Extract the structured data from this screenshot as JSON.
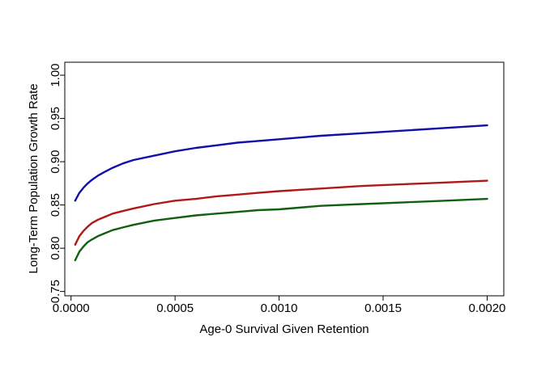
{
  "chart_data": {
    "type": "line",
    "title": "",
    "xlabel": "Age-0 Survival Given Retention",
    "ylabel": "Long-Term Population Growth Rate",
    "xlim": [
      -3e-05,
      0.00208
    ],
    "ylim": [
      0.745,
      1.015
    ],
    "xticks": [
      0.0,
      0.0005,
      0.001,
      0.0015,
      0.002
    ],
    "xtick_labels": [
      "0.0000",
      "0.0005",
      "0.0010",
      "0.0015",
      "0.0020"
    ],
    "yticks": [
      0.75,
      0.8,
      0.85,
      0.9,
      0.95,
      1.0
    ],
    "ytick_labels": [
      "0.75",
      "0.80",
      "0.85",
      "0.90",
      "0.95",
      "1.00"
    ],
    "grid": false,
    "legend": "none",
    "series": [
      {
        "color": "#1010a8",
        "x": [
          2e-05,
          4e-05,
          6e-05,
          8e-05,
          0.0001,
          0.00013,
          0.00016,
          0.0002,
          0.00025,
          0.0003,
          0.0004,
          0.0005,
          0.0006,
          0.0007,
          0.0008,
          0.0009,
          0.001,
          0.0012,
          0.0014,
          0.0016,
          0.0018,
          0.002
        ],
        "y": [
          0.855,
          0.864,
          0.87,
          0.875,
          0.879,
          0.884,
          0.888,
          0.893,
          0.898,
          0.902,
          0.907,
          0.912,
          0.916,
          0.919,
          0.922,
          0.924,
          0.926,
          0.93,
          0.933,
          0.936,
          0.939,
          0.942
        ]
      },
      {
        "color": "#b01818",
        "x": [
          2e-05,
          4e-05,
          6e-05,
          8e-05,
          0.0001,
          0.00013,
          0.00016,
          0.0002,
          0.00025,
          0.0003,
          0.0004,
          0.0005,
          0.0006,
          0.0007,
          0.0008,
          0.0009,
          0.001,
          0.0012,
          0.0014,
          0.0016,
          0.0018,
          0.002
        ],
        "y": [
          0.804,
          0.814,
          0.82,
          0.825,
          0.829,
          0.833,
          0.836,
          0.84,
          0.843,
          0.846,
          0.851,
          0.855,
          0.857,
          0.86,
          0.862,
          0.864,
          0.866,
          0.869,
          0.872,
          0.874,
          0.876,
          0.878
        ]
      },
      {
        "color": "#106010",
        "x": [
          2e-05,
          4e-05,
          6e-05,
          8e-05,
          0.0001,
          0.00013,
          0.00016,
          0.0002,
          0.00025,
          0.0003,
          0.0004,
          0.0005,
          0.0006,
          0.0007,
          0.0008,
          0.0009,
          0.001,
          0.0012,
          0.0014,
          0.0016,
          0.0018,
          0.002
        ],
        "y": [
          0.786,
          0.796,
          0.802,
          0.807,
          0.81,
          0.814,
          0.817,
          0.821,
          0.824,
          0.827,
          0.832,
          0.835,
          0.838,
          0.84,
          0.842,
          0.844,
          0.845,
          0.849,
          0.851,
          0.853,
          0.855,
          0.857
        ]
      }
    ]
  }
}
